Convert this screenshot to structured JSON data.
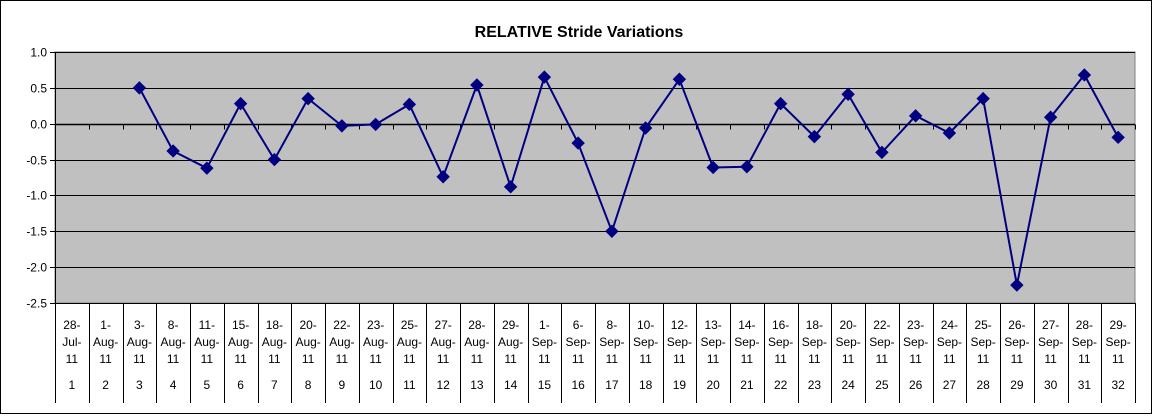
{
  "chart_data": {
    "type": "line",
    "title": "RELATIVE Stride Variations",
    "xlabel": "",
    "ylabel": "",
    "ylim": [
      -2.5,
      1.0
    ],
    "yticks": [
      "1.0",
      "0.5",
      "0.0",
      "-0.5",
      "-1.0",
      "-1.5",
      "-2.0",
      "-2.5"
    ],
    "ytick_values": [
      1.0,
      0.5,
      0.0,
      -0.5,
      -1.0,
      -1.5,
      -2.0,
      -2.5
    ],
    "grid": true,
    "legend": "none",
    "colors": {
      "plot_bg": "#c0c0c0",
      "line": "#000080",
      "marker": "#000080",
      "grid": "#000000"
    },
    "categories": [
      {
        "date": [
          "28-",
          "Jul-",
          "11"
        ],
        "index": "1"
      },
      {
        "date": [
          "1-",
          "Aug-",
          "11"
        ],
        "index": "2"
      },
      {
        "date": [
          "3-",
          "Aug-",
          "11"
        ],
        "index": "3"
      },
      {
        "date": [
          "8-",
          "Aug-",
          "11"
        ],
        "index": "4"
      },
      {
        "date": [
          "11-",
          "Aug-",
          "11"
        ],
        "index": "5"
      },
      {
        "date": [
          "15-",
          "Aug-",
          "11"
        ],
        "index": "6"
      },
      {
        "date": [
          "18-",
          "Aug-",
          "11"
        ],
        "index": "7"
      },
      {
        "date": [
          "20-",
          "Aug-",
          "11"
        ],
        "index": "8"
      },
      {
        "date": [
          "22-",
          "Aug-",
          "11"
        ],
        "index": "9"
      },
      {
        "date": [
          "23-",
          "Aug-",
          "11"
        ],
        "index": "10"
      },
      {
        "date": [
          "25-",
          "Aug-",
          "11"
        ],
        "index": "11"
      },
      {
        "date": [
          "27-",
          "Aug-",
          "11"
        ],
        "index": "12"
      },
      {
        "date": [
          "28-",
          "Aug-",
          "11"
        ],
        "index": "13"
      },
      {
        "date": [
          "29-",
          "Aug-",
          "11"
        ],
        "index": "14"
      },
      {
        "date": [
          "1-",
          "Sep-",
          "11"
        ],
        "index": "15"
      },
      {
        "date": [
          "6-",
          "Sep-",
          "11"
        ],
        "index": "16"
      },
      {
        "date": [
          "8-",
          "Sep-",
          "11"
        ],
        "index": "17"
      },
      {
        "date": [
          "10-",
          "Sep-",
          "11"
        ],
        "index": "18"
      },
      {
        "date": [
          "12-",
          "Sep-",
          "11"
        ],
        "index": "19"
      },
      {
        "date": [
          "13-",
          "Sep-",
          "11"
        ],
        "index": "20"
      },
      {
        "date": [
          "14-",
          "Sep-",
          "11"
        ],
        "index": "21"
      },
      {
        "date": [
          "16-",
          "Sep-",
          "11"
        ],
        "index": "22"
      },
      {
        "date": [
          "18-",
          "Sep-",
          "11"
        ],
        "index": "23"
      },
      {
        "date": [
          "20-",
          "Sep-",
          "11"
        ],
        "index": "24"
      },
      {
        "date": [
          "22-",
          "Sep-",
          "11"
        ],
        "index": "25"
      },
      {
        "date": [
          "23-",
          "Sep-",
          "11"
        ],
        "index": "26"
      },
      {
        "date": [
          "24-",
          "Sep-",
          "11"
        ],
        "index": "27"
      },
      {
        "date": [
          "25-",
          "Sep-",
          "11"
        ],
        "index": "28"
      },
      {
        "date": [
          "26-",
          "Sep-",
          "11"
        ],
        "index": "29"
      },
      {
        "date": [
          "27-",
          "Sep-",
          "11"
        ],
        "index": "30"
      },
      {
        "date": [
          "28-",
          "Sep-",
          "11"
        ],
        "index": "31"
      },
      {
        "date": [
          "29-",
          "Sep-",
          "11"
        ],
        "index": "32"
      }
    ],
    "series": [
      {
        "values": [
          null,
          null,
          0.5,
          -0.38,
          -0.62,
          0.28,
          -0.5,
          0.35,
          -0.03,
          -0.01,
          0.27,
          -0.74,
          0.54,
          -0.88,
          0.65,
          -0.27,
          -1.5,
          -0.06,
          0.62,
          -0.61,
          -0.6,
          0.28,
          -0.18,
          0.41,
          -0.4,
          0.11,
          -0.13,
          0.35,
          -2.25,
          0.09,
          0.68,
          -0.19
        ]
      }
    ]
  }
}
